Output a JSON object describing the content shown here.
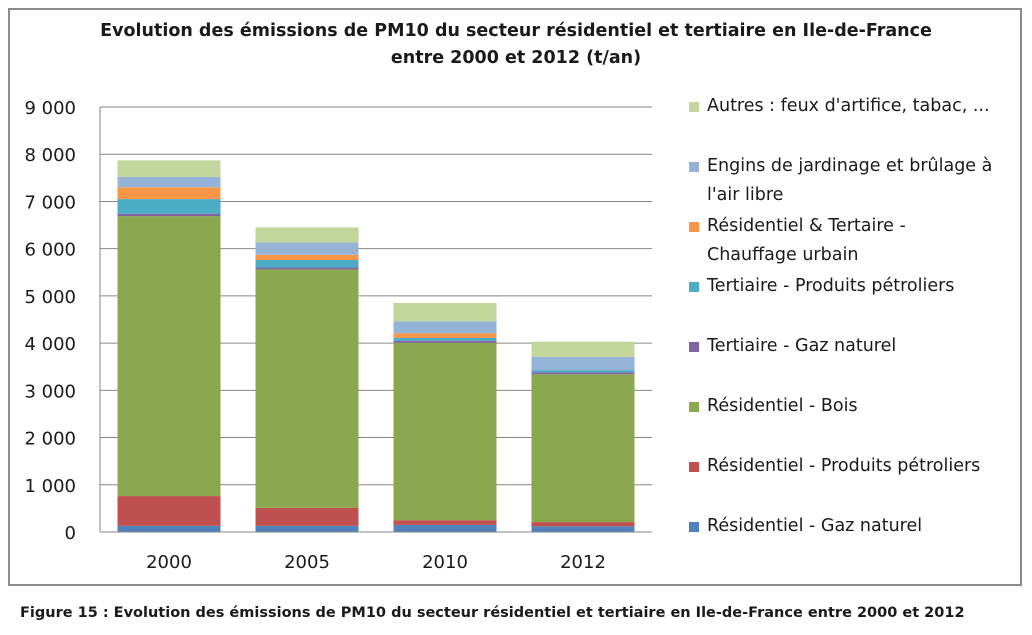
{
  "chart_data": {
    "type": "bar",
    "stacked": true,
    "title": "Evolution des émissions de PM10 du secteur résidentiel et tertiaire en Ile-de-France entre 2000 et 2012 (t/an)",
    "title_lines": [
      "Evolution des émissions de PM10 du secteur résidentiel et tertiaire en Ile-de-France",
      "entre 2000 et 2012 (t/an)"
    ],
    "xlabel": "",
    "ylabel": "",
    "ylim": [
      0,
      9000
    ],
    "yticks": [
      0,
      1000,
      2000,
      3000,
      4000,
      5000,
      6000,
      7000,
      8000,
      9000
    ],
    "ytick_labels": [
      "0",
      "1 000",
      "2 000",
      "3 000",
      "4 000",
      "5 000",
      "6 000",
      "7 000",
      "8 000",
      "9 000"
    ],
    "grid": true,
    "legend_position": "right",
    "categories": [
      "2000",
      "2005",
      "2010",
      "2012"
    ],
    "series": [
      {
        "name": "Résidentiel - Gaz naturel",
        "color": "#4f81bd",
        "values": [
          130,
          130,
          150,
          120
        ]
      },
      {
        "name": "Résidentiel - Produits pétroliers",
        "color": "#c0504d",
        "values": [
          630,
          380,
          100,
          90
        ]
      },
      {
        "name": "Résidentiel - Bois",
        "color": "#8aa84f",
        "values": [
          5930,
          5050,
          3760,
          3130
        ]
      },
      {
        "name": "Tertiaire - Gaz naturel",
        "color": "#8064a2",
        "values": [
          50,
          40,
          40,
          40
        ]
      },
      {
        "name": "Tertiaire - Produits pétroliers",
        "color": "#4bacc6",
        "values": [
          310,
          160,
          60,
          40
        ]
      },
      {
        "name": "Résidentiel & Tertaire - Chauffage urbain",
        "color": "#f79646",
        "values": [
          250,
          110,
          100,
          0
        ]
      },
      {
        "name": "Engins de jardinage et brûlage à l'air libre",
        "color": "#95b3d7",
        "values": [
          220,
          260,
          250,
          290
        ]
      },
      {
        "name": "Autres : feux d'artifice, tabac, ...",
        "color": "#c3d69b",
        "values": [
          350,
          320,
          390,
          320
        ]
      }
    ]
  },
  "legend_items": [
    {
      "lines": [
        "Autres : feux d'artifice, tabac, ..."
      ],
      "color": "#c3d69b"
    },
    {
      "lines": [
        "Engins de jardinage et brûlage à",
        "l'air libre"
      ],
      "color": "#95b3d7"
    },
    {
      "lines": [
        "Résidentiel & Tertaire -",
        "Chauffage urbain"
      ],
      "color": "#f79646"
    },
    {
      "lines": [
        "Tertiaire - Produits pétroliers"
      ],
      "color": "#4bacc6"
    },
    {
      "lines": [
        "Tertiaire - Gaz naturel"
      ],
      "color": "#8064a2"
    },
    {
      "lines": [
        "Résidentiel - Bois"
      ],
      "color": "#8aa84f"
    },
    {
      "lines": [
        "Résidentiel - Produits pétroliers"
      ],
      "color": "#c0504d"
    },
    {
      "lines": [
        "Résidentiel - Gaz naturel"
      ],
      "color": "#4f81bd"
    }
  ],
  "caption": "Figure 15 : Evolution des émissions de PM10 du secteur résidentiel et tertiaire en Ile-de-France entre 2000 et 2012"
}
